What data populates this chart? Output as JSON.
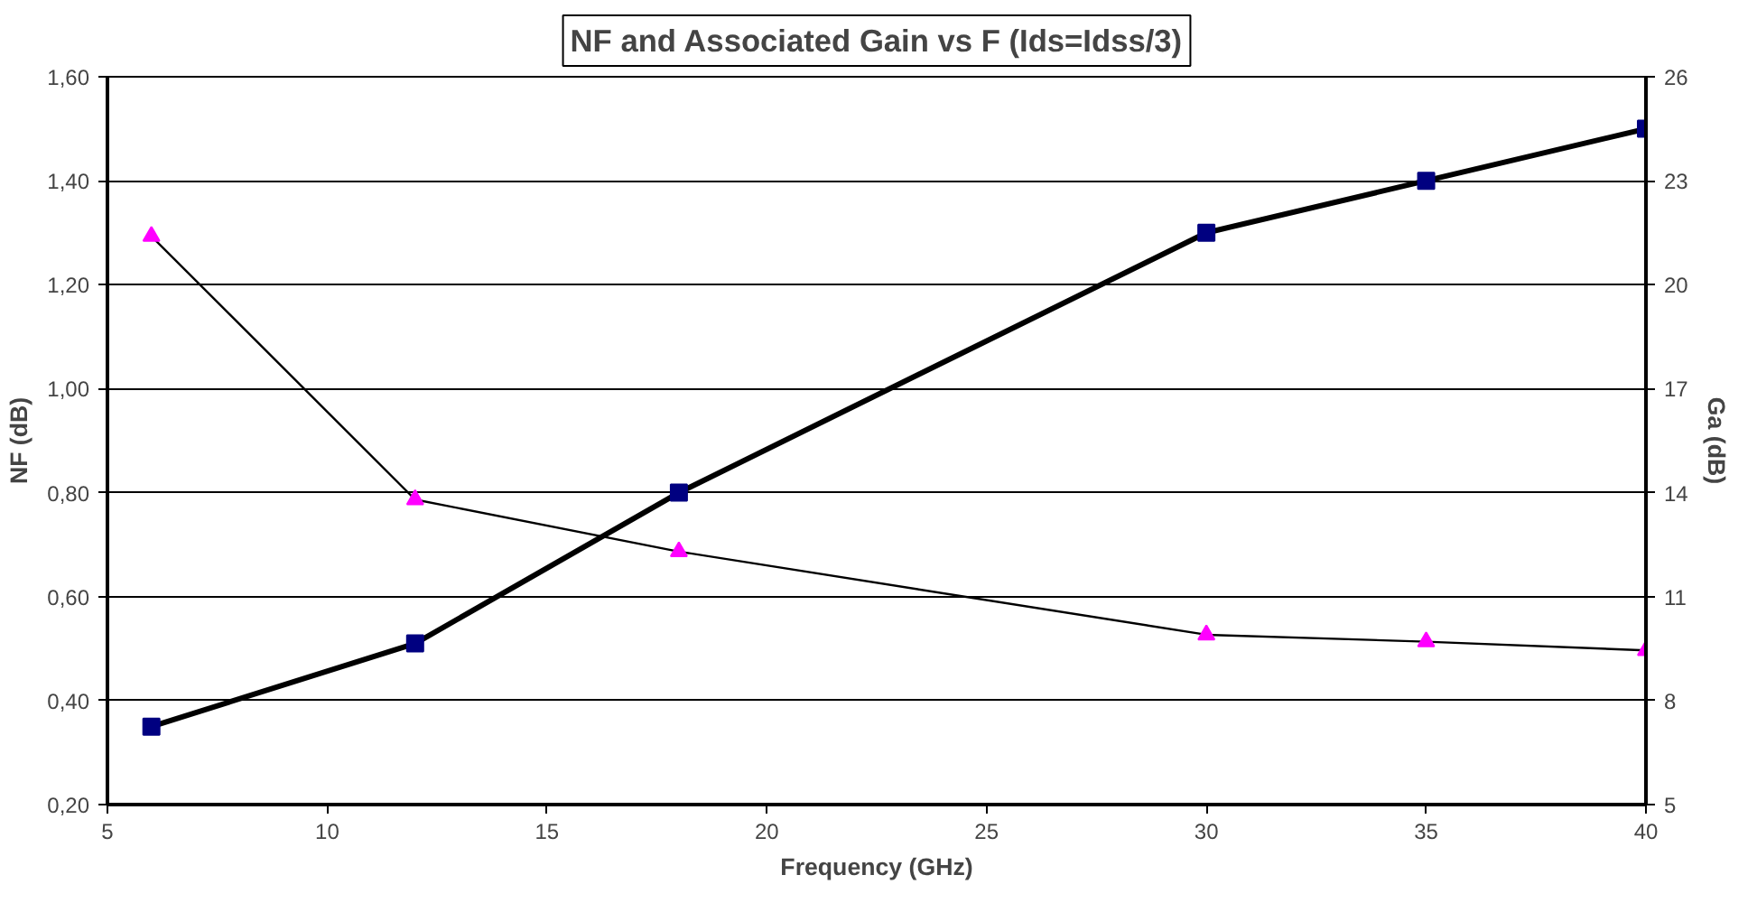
{
  "chart_data": {
    "type": "line",
    "title": "NF and Associated Gain vs F (Ids=Idss/3)",
    "xlabel": "Frequency (GHz)",
    "ylabel": "NF (dB)",
    "y2label": "Ga (dB)",
    "x": [
      6,
      12,
      18,
      30,
      35,
      40
    ],
    "series": [
      {
        "color": "#000080",
        "values": [
          0.35,
          0.51,
          0.8,
          1.3,
          1.4,
          1.5
        ],
        "marker": "square"
      },
      {
        "color": "#ff00ff",
        "values": [
          21.4,
          13.8,
          12.3,
          9.9,
          9.7,
          9.45
        ],
        "axis": "y2",
        "marker": "triangle"
      }
    ],
    "xlim": [
      5,
      40
    ],
    "xticks": [
      5,
      10,
      15,
      20,
      25,
      30,
      35,
      40
    ],
    "ylim": [
      0.2,
      1.6
    ],
    "yticks": [
      {
        "value": 0.2,
        "label": "0,20"
      },
      {
        "value": 0.4,
        "label": "0,40"
      },
      {
        "value": 0.6,
        "label": "0,60"
      },
      {
        "value": 0.8,
        "label": "0,80"
      },
      {
        "value": 1.0,
        "label": "1,00"
      },
      {
        "value": 1.2,
        "label": "1,20"
      },
      {
        "value": 1.4,
        "label": "1,40"
      },
      {
        "value": 1.6,
        "label": "1,60"
      }
    ],
    "y2lim": [
      5,
      26
    ],
    "y2ticks": [
      5,
      8,
      11,
      14,
      17,
      20,
      23,
      26
    ],
    "grid": "y"
  }
}
